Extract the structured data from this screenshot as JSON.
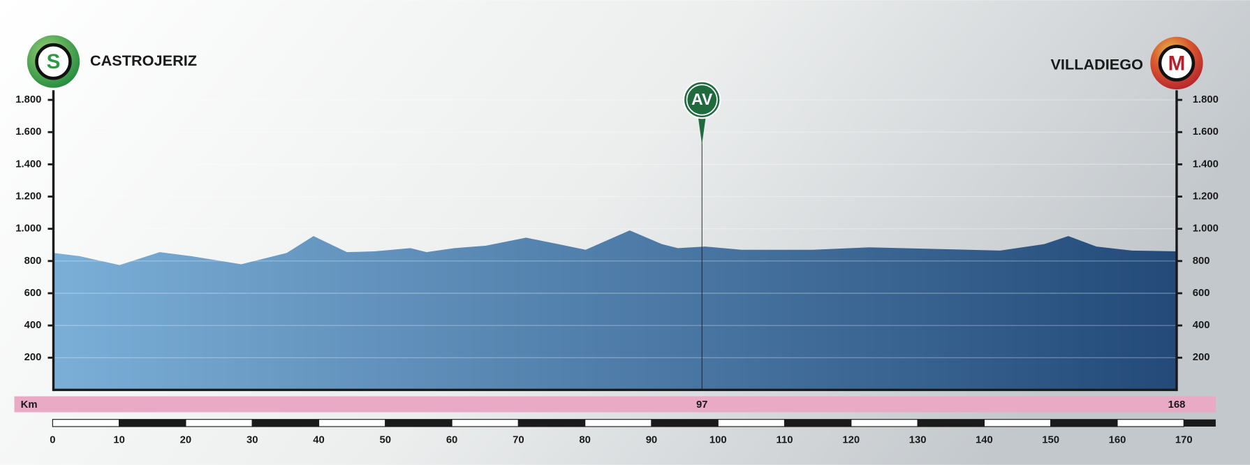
{
  "chart_data": {
    "type": "area",
    "start": {
      "name": "CASTROJERIZ",
      "icon": "S"
    },
    "finish": {
      "name": "VILLADIEGO",
      "icon": "M"
    },
    "x": [
      0,
      3.9,
      9.9,
      15.9,
      20.6,
      28.1,
      34.9,
      38.9,
      43.9,
      48,
      53.4,
      55.8,
      60,
      64.7,
      70.7,
      75.5,
      79.6,
      86.2,
      91,
      93.4,
      97.5,
      102.9,
      113.6,
      122,
      141.6,
      148.2,
      151.8,
      156,
      161.3,
      168
    ],
    "values": [
      850,
      830,
      775,
      855,
      830,
      780,
      850,
      955,
      855,
      860,
      880,
      855,
      880,
      895,
      945,
      905,
      870,
      990,
      905,
      880,
      890,
      870,
      870,
      885,
      865,
      905,
      955,
      890,
      865,
      860
    ],
    "xlim": [
      0,
      168
    ],
    "ylim": [
      0,
      1860
    ],
    "yticks": [
      200,
      400,
      600,
      800,
      {
        "value": 1000,
        "label": "1.000"
      },
      {
        "value": 1200,
        "label": "1.200"
      },
      {
        "value": 1400,
        "label": "1.400"
      },
      {
        "value": 1600,
        "label": "1.600"
      },
      {
        "value": 1800,
        "label": "1.800"
      }
    ],
    "grid": true,
    "fill_colors": [
      "#7bafd8",
      "#234a79"
    ],
    "markers": [
      {
        "label": "AV",
        "km": 97,
        "color": "#1f6b3e"
      }
    ],
    "km_label": "Km",
    "distance": 168,
    "km_bar_color": "#e8aac5",
    "ruler": {
      "xlim": [
        0,
        170
      ],
      "xticks": [
        0,
        10,
        20,
        30,
        40,
        50,
        60,
        70,
        80,
        90,
        100,
        110,
        120,
        130,
        140,
        150,
        160,
        170
      ]
    }
  }
}
